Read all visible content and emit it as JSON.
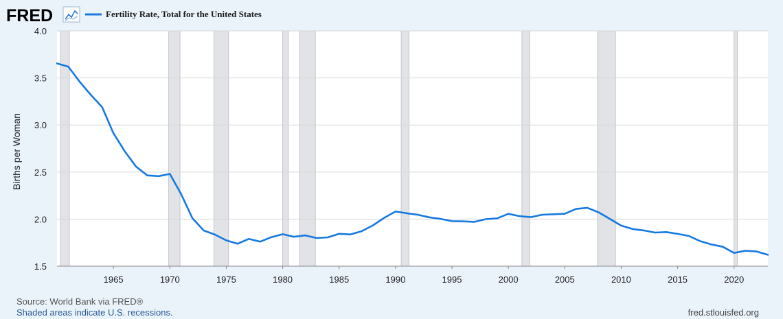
{
  "header": {
    "brand": "FRED",
    "brand_icon": "line-chart-icon",
    "legend_label": "Fertility Rate, Total for the United States",
    "series_color": "#1679e0"
  },
  "footer": {
    "source": "Source: World Bank via FRED®",
    "recession_note": "Shaded areas indicate U.S. recessions.",
    "site": "fred.stlouisfed.org"
  },
  "chart_data": {
    "type": "line",
    "ylabel": "Births per Woman",
    "xlim": [
      1960,
      2023
    ],
    "ylim": [
      1.5,
      4.0
    ],
    "yticks": [
      1.5,
      2.0,
      2.5,
      3.0,
      3.5,
      4.0
    ],
    "yticklabels": [
      "1.5",
      "2.0",
      "2.5",
      "3.0",
      "3.5",
      "4.0"
    ],
    "xticks": [
      1965,
      1970,
      1975,
      1980,
      1985,
      1990,
      1995,
      2000,
      2005,
      2010,
      2015,
      2020
    ],
    "xticklabels": [
      "1965",
      "1970",
      "1975",
      "1980",
      "1985",
      "1990",
      "1995",
      "2000",
      "2005",
      "2010",
      "2015",
      "2020"
    ],
    "grid": true,
    "recessions": [
      [
        1960.3,
        1961.1
      ],
      [
        1969.9,
        1970.9
      ],
      [
        1973.9,
        1975.2
      ],
      [
        1980.0,
        1980.5
      ],
      [
        1981.5,
        1982.9
      ],
      [
        1990.5,
        1991.2
      ],
      [
        2001.2,
        2001.9
      ],
      [
        2007.9,
        2009.5
      ],
      [
        2020.0,
        2020.3
      ]
    ],
    "series": [
      {
        "x": [
          1960,
          1961,
          1962,
          1963,
          1964,
          1965,
          1966,
          1967,
          1968,
          1969,
          1970,
          1971,
          1972,
          1973,
          1974,
          1975,
          1976,
          1977,
          1978,
          1979,
          1980,
          1981,
          1982,
          1983,
          1984,
          1985,
          1986,
          1987,
          1988,
          1989,
          1990,
          1991,
          1992,
          1993,
          1994,
          1995,
          1996,
          1997,
          1998,
          1999,
          2000,
          2001,
          2002,
          2003,
          2004,
          2005,
          2006,
          2007,
          2008,
          2009,
          2010,
          2011,
          2012,
          2013,
          2014,
          2015,
          2016,
          2017,
          2018,
          2019,
          2020,
          2021,
          2022,
          2023
        ],
        "values": [
          3.654,
          3.62,
          3.461,
          3.319,
          3.19,
          2.913,
          2.721,
          2.558,
          2.464,
          2.456,
          2.48,
          2.266,
          2.01,
          1.879,
          1.835,
          1.774,
          1.738,
          1.79,
          1.76,
          1.808,
          1.84,
          1.812,
          1.827,
          1.799,
          1.806,
          1.844,
          1.837,
          1.872,
          1.934,
          2.014,
          2.081,
          2.062,
          2.046,
          2.019,
          2.002,
          1.978,
          1.976,
          1.971,
          1.999,
          2.008,
          2.056,
          2.031,
          2.021,
          2.047,
          2.052,
          2.057,
          2.108,
          2.12,
          2.072,
          2.002,
          1.931,
          1.895,
          1.88,
          1.857,
          1.862,
          1.843,
          1.821,
          1.766,
          1.73,
          1.706,
          1.641,
          1.664,
          1.656,
          1.621
        ]
      }
    ]
  }
}
